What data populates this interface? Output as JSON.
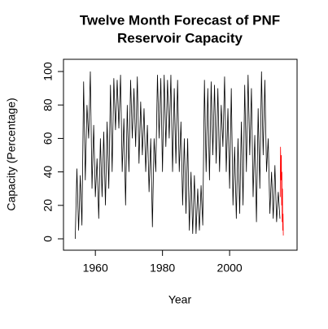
{
  "chart_data": {
    "type": "line",
    "title": [
      "Twelve Month Forecast of PNF",
      "Reservoir Capacity"
    ],
    "xlabel": "Year",
    "ylabel": "Capacity (Percentage)",
    "xlim": [
      1950.5,
      2020.1
    ],
    "xticks": [
      1960,
      1980,
      2000
    ],
    "ylim": [
      -6.8,
      107.3
    ],
    "yticks": [
      0,
      20,
      40,
      60,
      80,
      100
    ],
    "series": [
      {
        "color": "#000000",
        "x": [
          1954,
          1954.5,
          1955,
          1955.5,
          1956,
          1956.5,
          1957,
          1957.5,
          1958,
          1958.5,
          1959,
          1959.5,
          1960,
          1960.5,
          1961,
          1961.5,
          1962,
          1962.5,
          1963,
          1963.5,
          1964,
          1964.5,
          1965,
          1965.5,
          1966,
          1966.5,
          1967,
          1967.5,
          1968,
          1968.5,
          1969,
          1969.5,
          1970,
          1970.5,
          1971,
          1971.5,
          1972,
          1972.5,
          1973,
          1973.5,
          1974,
          1974.5,
          1975,
          1975.5,
          1976,
          1976.5,
          1977,
          1977.5,
          1978,
          1978.5,
          1979,
          1979.5,
          1980,
          1980.5,
          1981,
          1981.5,
          1982,
          1982.5,
          1983,
          1983.5,
          1984,
          1984.5,
          1985,
          1985.5,
          1986,
          1986.5,
          1987,
          1987.5,
          1988,
          1988.5,
          1989,
          1989.5,
          1990,
          1990.5,
          1991,
          1991.5,
          1992,
          1992.5,
          1993,
          1993.5,
          1994,
          1994.5,
          1995,
          1995.5,
          1996,
          1996.5,
          1997,
          1997.5,
          1998,
          1998.5,
          1999,
          1999.5,
          2000,
          2000.5,
          2001,
          2001.5,
          2002,
          2002.5,
          2003,
          2003.5,
          2004,
          2004.5,
          2005,
          2005.5,
          2006,
          2006.5,
          2007,
          2007.5,
          2008,
          2008.5,
          2009,
          2009.5,
          2010,
          2010.5,
          2011,
          2011.5,
          2012,
          2012.5,
          2013,
          2013.5,
          2014,
          2014.5,
          2015
        ],
        "values": [
          0,
          42,
          5,
          38,
          8,
          94,
          35,
          80,
          60,
          100,
          30,
          68,
          25,
          48,
          12,
          60,
          25,
          64,
          20,
          70,
          30,
          92,
          40,
          96,
          65,
          95,
          66,
          98,
          40,
          72,
          20,
          80,
          40,
          95,
          60,
          90,
          55,
          97,
          45,
          82,
          50,
          78,
          40,
          68,
          28,
          60,
          7,
          60,
          40,
          98,
          60,
          96,
          40,
          98,
          55,
          95,
          60,
          98,
          40,
          90,
          45,
          95,
          40,
          70,
          20,
          60,
          15,
          60,
          5,
          40,
          3,
          38,
          3,
          30,
          5,
          32,
          8,
          95,
          40,
          90,
          35,
          94,
          50,
          92,
          45,
          90,
          40,
          80,
          55,
          97,
          40,
          78,
          30,
          90,
          20,
          55,
          12,
          60,
          15,
          70,
          20,
          92,
          40,
          98,
          50,
          90,
          25,
          62,
          10,
          78,
          30,
          100,
          50,
          95,
          40,
          60,
          15,
          40,
          12,
          44,
          10,
          28,
          12
        ]
      },
      {
        "color": "#ff0000",
        "x": [
          2015.08,
          2015.17,
          2015.25,
          2015.33,
          2015.42,
          2015.5,
          2015.58,
          2015.67,
          2015.75,
          2015.83,
          2015.92,
          2016
        ],
        "values": [
          25,
          55,
          45,
          35,
          50,
          20,
          40,
          10,
          30,
          5,
          15,
          2
        ]
      }
    ]
  }
}
